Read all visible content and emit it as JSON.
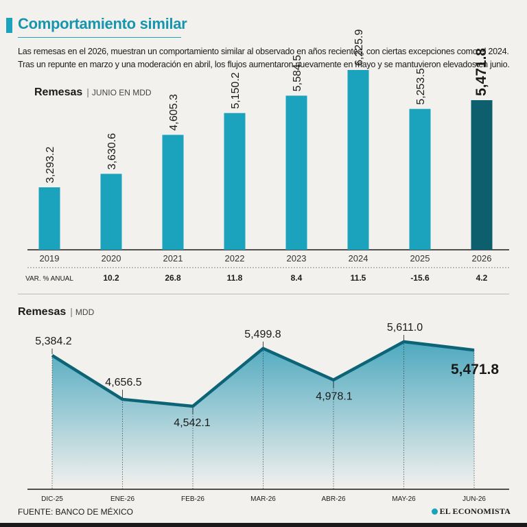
{
  "header": {
    "title": "Comportamiento similar",
    "intro": "Las remesas en el 2026, muestran un comportamiento similar al observado en años recientes, con ciertas excepciones como el 2024. Tras un repunte en marzo y una moderación en abril, los flujos aumentaron nuevamente en mayo y se mantuvieron elevados en junio."
  },
  "footer": {
    "source": "FUENTE: BANCO DE MÉXICO",
    "brand": "EL ECONOMISTA"
  },
  "colors": {
    "bar": "#1ba3bd",
    "bar_highlight": "#0d5f6e",
    "line": "#0d6476",
    "area_top": "#4ea9bf",
    "area_bottom": "#f3f1ee"
  },
  "chart_data": [
    {
      "type": "bar",
      "title": "Remesas",
      "subtitle": "JUNIO EN MDD",
      "categories": [
        "2019",
        "2020",
        "2021",
        "2022",
        "2023",
        "2024",
        "2025",
        "2026"
      ],
      "values": [
        3293.2,
        3630.6,
        4605.3,
        5150.2,
        5584.5,
        6225.9,
        5253.5,
        5471.8
      ],
      "value_labels": [
        "3,293.2",
        "3,630.6",
        "4,605.3",
        "5,150.2",
        "5,584.5",
        "6,225.9",
        "5,253.5",
        "5,471.8"
      ],
      "highlight_index": 7,
      "variation_label": "VAR. % ANUAL",
      "variation": [
        "10.2",
        "26.8",
        "11.8",
        "8.4",
        "11.5",
        "-15.6",
        "4.2"
      ],
      "ylim": [
        0,
        7000
      ]
    },
    {
      "type": "area",
      "title": "Remesas",
      "subtitle": "MDD",
      "categories": [
        "DIC-25",
        "ENE-26",
        "FEB-26",
        "MAR-26",
        "ABR-26",
        "MAY-26",
        "JUN-26"
      ],
      "values": [
        5384.2,
        4656.5,
        4542.1,
        5499.8,
        4978.1,
        5611.0,
        5471.8
      ],
      "value_labels": [
        "5,384.2",
        "4,656.5",
        "4,542.1",
        "5,499.8",
        "4,978.1",
        "5,611.0",
        "5,471.8"
      ],
      "highlight_index": 6,
      "ylim": [
        3000,
        5700
      ]
    }
  ]
}
